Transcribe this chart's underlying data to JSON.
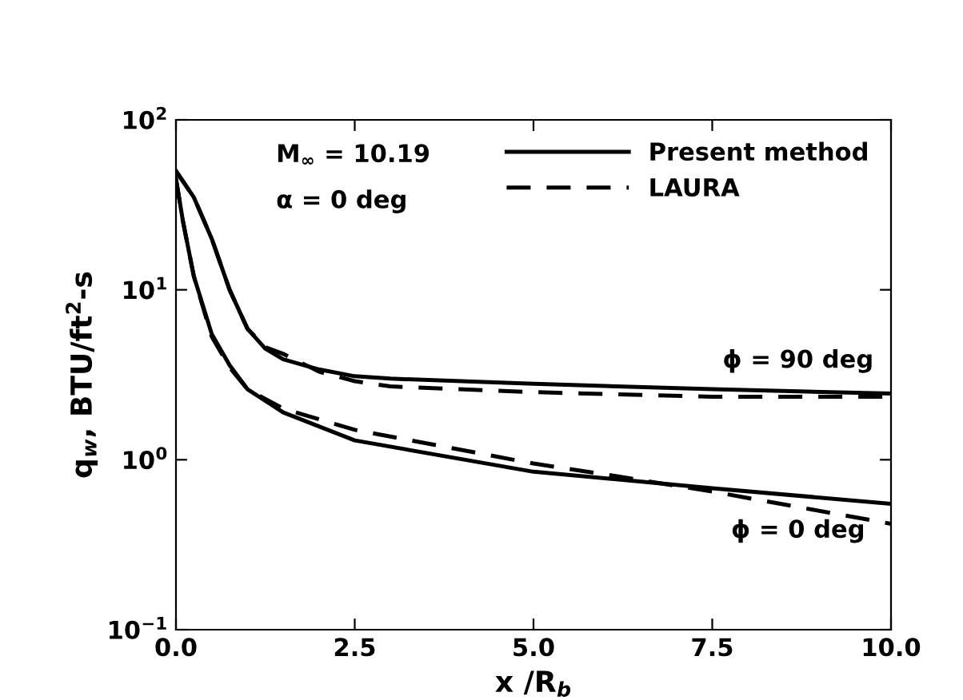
{
  "chart_data": {
    "type": "line",
    "xlabel": "x /R$_{b}$",
    "ylabel": "q$_{w}$, BTU/ft$^{2}$-s",
    "log": "y",
    "xlim": [
      0,
      10
    ],
    "ylim": [
      0.1,
      100
    ],
    "xticks": [
      {
        "value": 0,
        "label": "0.0"
      },
      {
        "value": 2.5,
        "label": "2.5"
      },
      {
        "value": 5,
        "label": "5.0"
      },
      {
        "value": 7.5,
        "label": "7.5"
      },
      {
        "value": 10,
        "label": "10.0"
      }
    ],
    "yticks": [
      {
        "value": 0.1,
        "label": "10$^{−1}$"
      },
      {
        "value": 1,
        "label": "10$^{0}$"
      },
      {
        "value": 10,
        "label": "10$^{1}$"
      },
      {
        "value": 100,
        "label": "10$^{2}$"
      }
    ],
    "legend": "top right",
    "grid": false,
    "marker": "none",
    "series": [
      {
        "name": "Present method",
        "color": "#000000",
        "line_style": "solid",
        "x": [
          0,
          0.25,
          0.5,
          0.75,
          1,
          1.25,
          1.5,
          2,
          2.5,
          3,
          5,
          7.5,
          10
        ],
        "values": [
          50,
          35,
          20,
          10,
          5.9,
          4.5,
          3.9,
          3.4,
          3.1,
          3.0,
          2.8,
          2.6,
          2.45
        ]
      },
      {
        "name": "LAURA",
        "color": "#000000",
        "line_style": "dashed",
        "x": [
          0,
          0.25,
          0.5,
          0.75,
          1,
          1.25,
          1.5,
          2,
          2.5,
          3,
          5,
          7.5,
          10
        ],
        "values": [
          50,
          35,
          20,
          10,
          5.9,
          4.6,
          4.2,
          3.3,
          2.9,
          2.7,
          2.5,
          2.35,
          2.35
        ]
      },
      {
        "color": "#000000",
        "line_style": "solid",
        "x": [
          0,
          0.1,
          0.25,
          0.5,
          0.75,
          1,
          1.5,
          2.5,
          5,
          7.5,
          10
        ],
        "values": [
          45,
          25,
          12,
          5.5,
          3.6,
          2.6,
          1.9,
          1.3,
          0.85,
          0.68,
          0.55
        ]
      },
      {
        "color": "#000000",
        "line_style": "dashed",
        "x": [
          0,
          0.1,
          0.25,
          0.5,
          0.75,
          1,
          1.5,
          2.5,
          5,
          6,
          7.5,
          10
        ],
        "values": [
          45,
          25,
          12,
          5.3,
          3.5,
          2.6,
          2.0,
          1.5,
          0.95,
          0.82,
          0.65,
          0.42
        ]
      }
    ],
    "annotations": [
      "M$_{∞}$ = 10.19",
      "α = 0 deg",
      {
        "text": "ϕ = 90 deg",
        "x": 8.7,
        "y": 2.5
      },
      {
        "text": "ϕ = 0 deg",
        "x": 8.7,
        "y": 0.58
      }
    ]
  }
}
